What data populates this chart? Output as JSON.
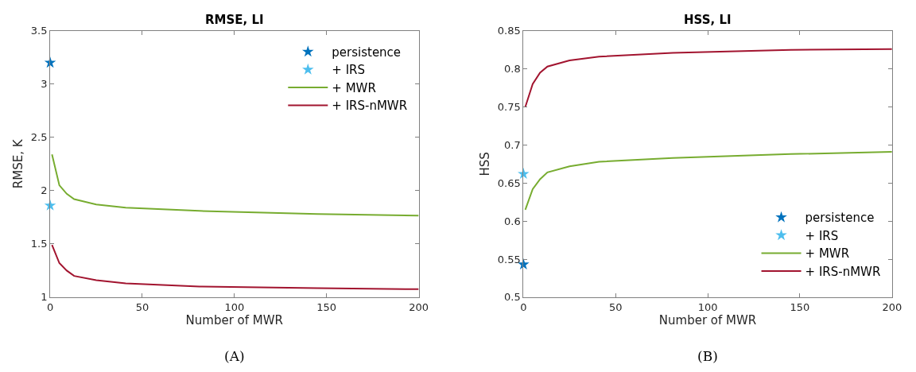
{
  "chart_data": [
    {
      "type": "line",
      "title": "RMSE, LI",
      "xlabel": "Number of MWR",
      "ylabel": "RMSE, K",
      "xlim": [
        0,
        200
      ],
      "xticks": [
        0,
        50,
        100,
        150,
        200
      ],
      "ylim": [
        1,
        3.5
      ],
      "yticks": [
        1,
        1.5,
        2,
        2.5,
        3,
        3.5
      ],
      "grid": false,
      "legend": "top right",
      "annotations": [
        "(A)"
      ],
      "series": [
        {
          "name": "persistence",
          "type": "scatter",
          "marker": "star",
          "color": "#0072bd",
          "x": [
            0
          ],
          "values": [
            3.2
          ]
        },
        {
          "name": "+ IRS",
          "type": "scatter",
          "marker": "star",
          "color": "#4dbeee",
          "x": [
            0
          ],
          "values": [
            1.86
          ]
        },
        {
          "name": "+ MWR",
          "color": "#77ac30",
          "x": [
            1,
            5,
            9,
            13,
            25,
            41,
            81,
            145,
            200
          ],
          "values": [
            2.34,
            2.05,
            1.97,
            1.92,
            1.87,
            1.84,
            1.81,
            1.78,
            1.765
          ]
        },
        {
          "name": "+ IRS-nMWR",
          "color": "#a2142f",
          "x": [
            1,
            5,
            9,
            13,
            25,
            41,
            81,
            145,
            200
          ],
          "values": [
            1.49,
            1.32,
            1.25,
            1.2,
            1.16,
            1.13,
            1.1,
            1.085,
            1.075
          ]
        }
      ]
    },
    {
      "type": "line",
      "title": "HSS, LI",
      "xlabel": "Number of MWR",
      "ylabel": "HSS",
      "xlim": [
        0,
        200
      ],
      "xticks": [
        0,
        50,
        100,
        150,
        200
      ],
      "ylim": [
        0.5,
        0.85
      ],
      "yticks": [
        0.5,
        0.55,
        0.6,
        0.65,
        0.7,
        0.75,
        0.8,
        0.85
      ],
      "grid": false,
      "legend": "bottom right",
      "annotations": [
        "(B)"
      ],
      "series": [
        {
          "name": "persistence",
          "type": "scatter",
          "marker": "star",
          "color": "#0072bd",
          "x": [
            0
          ],
          "values": [
            0.543
          ]
        },
        {
          "name": "+ IRS",
          "type": "scatter",
          "marker": "star",
          "color": "#4dbeee",
          "x": [
            0
          ],
          "values": [
            0.662
          ]
        },
        {
          "name": "+ MWR",
          "color": "#77ac30",
          "x": [
            1,
            5,
            9,
            13,
            25,
            41,
            81,
            145,
            200
          ],
          "values": [
            0.615,
            0.642,
            0.655,
            0.664,
            0.672,
            0.678,
            0.683,
            0.688,
            0.691
          ]
        },
        {
          "name": "+ IRS-nMWR",
          "color": "#a2142f",
          "x": [
            1,
            5,
            9,
            13,
            25,
            41,
            81,
            145,
            200
          ],
          "values": [
            0.75,
            0.78,
            0.795,
            0.803,
            0.811,
            0.816,
            0.821,
            0.825,
            0.826
          ]
        }
      ]
    }
  ]
}
